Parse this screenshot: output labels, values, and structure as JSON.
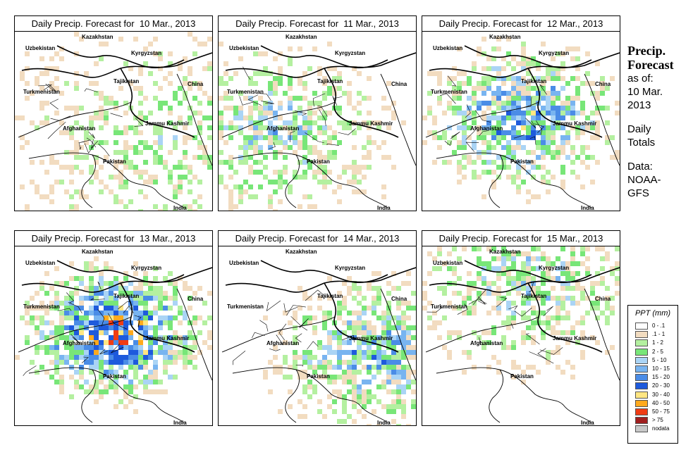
{
  "panels": [
    {
      "title": "Daily Precip. Forecast for  10 Mar., 2013",
      "intensity": 0.15,
      "focus": "east"
    },
    {
      "title": "Daily Precip. Forecast for  11 Mar., 2013",
      "intensity": 0.35,
      "focus": "west"
    },
    {
      "title": "Daily Precip. Forecast for  12 Mar., 2013",
      "intensity": 0.6,
      "focus": "center"
    },
    {
      "title": "Daily Precip. Forecast for  13 Mar., 2013",
      "intensity": 0.85,
      "focus": "center"
    },
    {
      "title": "Daily Precip. Forecast for  14 Mar., 2013",
      "intensity": 0.5,
      "focus": "east"
    },
    {
      "title": "Daily Precip. Forecast for  15 Mar., 2013",
      "intensity": 0.3,
      "focus": "north"
    }
  ],
  "countries": {
    "kazakhstan": "Kazakhstan",
    "uzbekistan": "Uzbekistan",
    "kyrgyzstan": "Kyrgyzstan",
    "tajikistan": "Tajikistan",
    "china": "China",
    "turkmenistan": "Turkmenistan",
    "afghanistan": "Afghanistan",
    "jammu": "Jammu Kashmir",
    "pakistan": "Pakistan",
    "india": "India"
  },
  "side": {
    "title1": "Precip.",
    "title2": "Forecast",
    "as_of": "as of:",
    "date1": "10 Mar.",
    "date2": "2013",
    "daily1": "Daily",
    "daily2": "Totals",
    "data1": "Data:",
    "data2": "NOAA-",
    "data3": "GFS"
  },
  "legend": {
    "title": "PPT (mm)",
    "items": [
      {
        "label": "0 - .1",
        "color": "#ffffff"
      },
      {
        "label": ".1 - 1",
        "color": "#f2dcc0"
      },
      {
        "label": "1 - 2",
        "color": "#b4f0a0"
      },
      {
        "label": "2 - 5",
        "color": "#78e678"
      },
      {
        "label": "5 - 10",
        "color": "#aad4f5"
      },
      {
        "label": "10 - 15",
        "color": "#78b4f0"
      },
      {
        "label": "15 - 20",
        "color": "#4a8ce6"
      },
      {
        "label": "20 - 30",
        "color": "#1e5adc"
      },
      {
        "label": "30 - 40",
        "color": "#ffe682"
      },
      {
        "label": "40 - 50",
        "color": "#ffaa1e"
      },
      {
        "label": "50 - 75",
        "color": "#f03c14"
      },
      {
        "label": "> 75",
        "color": "#a01e1e"
      },
      {
        "label": "nodata",
        "color": "#c8c8c8"
      }
    ]
  }
}
